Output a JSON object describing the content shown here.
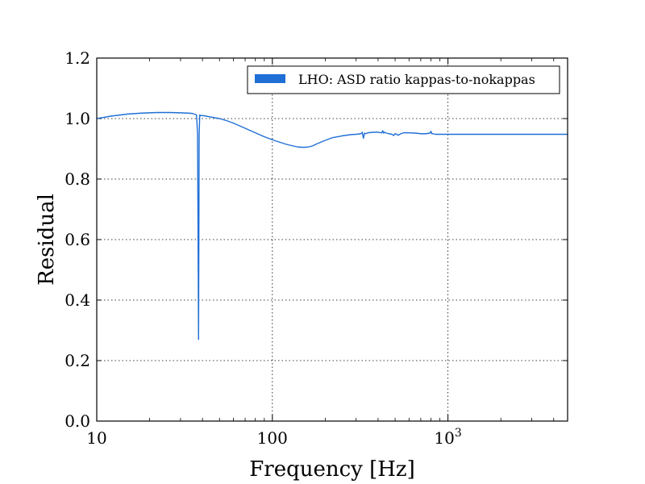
{
  "chart_data": {
    "type": "line",
    "title": "",
    "xlabel": "Frequency [Hz]",
    "ylabel": "Residual",
    "x_scale": "log",
    "xlim": [
      10,
      4800
    ],
    "ylim": [
      0.0,
      1.2
    ],
    "grid": true,
    "legend_position": "top-right",
    "x_ticks": [
      {
        "value": 10,
        "label": "10"
      },
      {
        "value": 100,
        "label": "100"
      },
      {
        "value": 1000,
        "label": "10",
        "sup": "3"
      }
    ],
    "y_ticks": [
      {
        "value": 0.0,
        "label": "0.0"
      },
      {
        "value": 0.2,
        "label": "0.2"
      },
      {
        "value": 0.4,
        "label": "0.4"
      },
      {
        "value": 0.6,
        "label": "0.6"
      },
      {
        "value": 0.8,
        "label": "0.8"
      },
      {
        "value": 1.0,
        "label": "1.0"
      },
      {
        "value": 1.2,
        "label": "1.2"
      }
    ],
    "series": [
      {
        "name": "LHO: ASD ratio kappas-to-nokappas",
        "color": "#1f6fd6",
        "x": [
          10,
          12,
          15,
          18,
          22,
          26,
          30,
          33,
          35,
          36,
          37,
          37.5,
          38,
          38.3,
          38.6,
          39,
          40,
          42,
          45,
          50,
          55,
          60,
          70,
          80,
          90,
          100,
          110,
          120,
          130,
          140,
          150,
          160,
          170,
          180,
          200,
          220,
          250,
          280,
          300,
          320,
          325,
          330,
          335,
          340,
          350,
          380,
          400,
          420,
          425,
          430,
          435,
          440,
          460,
          480,
          490,
          500,
          510,
          520,
          540,
          560,
          600,
          650,
          700,
          750,
          790,
          800,
          810,
          820,
          850,
          900,
          1000,
          1500,
          2000,
          3000,
          4000,
          4800
        ],
        "y": [
          1.0,
          1.008,
          1.015,
          1.018,
          1.02,
          1.02,
          1.019,
          1.018,
          1.017,
          1.015,
          1.012,
          0.95,
          0.27,
          0.95,
          1.012,
          1.01,
          1.01,
          1.008,
          1.005,
          1.0,
          0.993,
          0.985,
          0.968,
          0.953,
          0.94,
          0.93,
          0.922,
          0.915,
          0.91,
          0.906,
          0.905,
          0.906,
          0.91,
          0.917,
          0.928,
          0.937,
          0.943,
          0.947,
          0.948,
          0.95,
          0.955,
          0.935,
          0.952,
          0.95,
          0.953,
          0.955,
          0.955,
          0.953,
          0.96,
          0.952,
          0.955,
          0.953,
          0.95,
          0.948,
          0.944,
          0.95,
          0.948,
          0.945,
          0.95,
          0.953,
          0.953,
          0.952,
          0.95,
          0.95,
          0.952,
          0.958,
          0.95,
          0.95,
          0.948,
          0.948,
          0.948,
          0.948,
          0.948,
          0.948,
          0.948,
          0.948
        ]
      }
    ]
  }
}
